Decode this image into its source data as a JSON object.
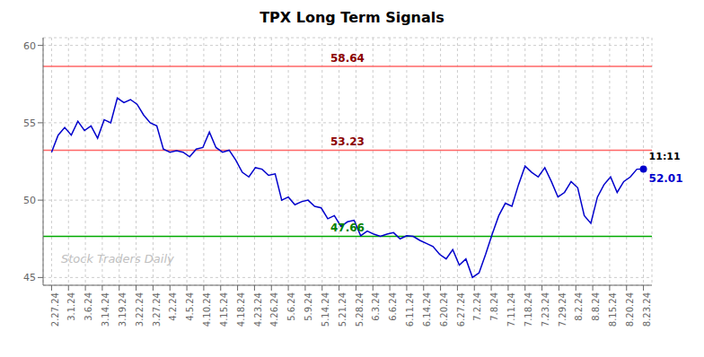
{
  "chart_data": {
    "type": "line",
    "title": "TPX Long Term Signals",
    "x": [
      0,
      0.388889,
      0.777778,
      1.166667,
      1.555556,
      1.944444,
      2.333333,
      2.722222,
      3.111111,
      3.5,
      3.888889,
      4.277778,
      4.666667,
      5.055556,
      5.444444,
      5.833333,
      6.222222,
      6.611111,
      7,
      7.388889,
      7.777778,
      8.166667,
      8.555556,
      8.944444,
      9.333333,
      9.722222,
      10.111111,
      10.5,
      10.888889,
      11.277778,
      11.666667,
      12.055556,
      12.444444,
      12.833333,
      13.222222,
      13.611111,
      14,
      14.388889,
      14.777778,
      15.166667,
      15.555556,
      15.944444,
      16.333333,
      16.722222,
      17.111111,
      17.5,
      17.888889,
      18.277778,
      18.666667,
      19.055556,
      19.444444,
      19.833333,
      20.222222,
      20.611111,
      21,
      21.388889,
      21.777778,
      22.166667,
      22.555556,
      22.944444,
      23.333333,
      23.722222,
      24.111111,
      24.5,
      24.888889,
      25.277778,
      25.666667,
      26.055556,
      26.444444,
      26.833333,
      27.222222,
      27.611111,
      28,
      28.388889,
      28.777778,
      29.166667,
      29.555556,
      29.944444,
      30.333333,
      30.722222,
      31.111111,
      31.5,
      31.888889,
      32.277778,
      32.666667,
      33.055556,
      33.444444,
      33.833333,
      34.222222,
      34.611111,
      35
    ],
    "values": [
      53.1,
      54.2,
      54.7,
      54.2,
      55.1,
      54.5,
      54.8,
      54.0,
      55.2,
      55.0,
      56.6,
      56.3,
      56.5,
      56.2,
      55.5,
      55.0,
      54.8,
      53.3,
      53.1,
      53.2,
      53.1,
      52.8,
      53.3,
      53.4,
      54.4,
      53.4,
      53.1,
      53.23,
      52.6,
      51.8,
      51.5,
      52.1,
      52.0,
      51.6,
      51.7,
      50.0,
      50.2,
      49.7,
      49.9,
      50.0,
      49.6,
      49.5,
      48.8,
      49.0,
      48.3,
      48.6,
      48.7,
      47.7,
      48.0,
      47.8,
      47.66,
      47.8,
      47.9,
      47.5,
      47.7,
      47.66,
      47.4,
      47.2,
      47.0,
      46.5,
      46.2,
      46.8,
      45.8,
      46.2,
      45.0,
      45.3,
      46.5,
      47.8,
      49.0,
      49.8,
      49.6,
      51.0,
      52.2,
      51.8,
      51.5,
      52.1,
      51.2,
      50.2,
      50.5,
      51.2,
      50.8,
      49.0,
      48.5,
      50.2,
      51.0,
      51.5,
      50.5,
      51.2,
      51.5,
      52.0,
      52.01
    ],
    "color": "#0000cc",
    "xlim": [
      -0.5,
      35.5
    ],
    "xticks": [
      {
        "value": 0,
        "label": "2.27.24"
      },
      {
        "value": 1,
        "label": "3.1.24"
      },
      {
        "value": 2,
        "label": "3.6.24"
      },
      {
        "value": 3,
        "label": "3.14.24"
      },
      {
        "value": 4,
        "label": "3.19.24"
      },
      {
        "value": 5,
        "label": "3.22.24"
      },
      {
        "value": 6,
        "label": "3.27.24"
      },
      {
        "value": 7,
        "label": "4.2.24"
      },
      {
        "value": 8,
        "label": "4.5.24"
      },
      {
        "value": 9,
        "label": "4.10.24"
      },
      {
        "value": 10,
        "label": "4.15.24"
      },
      {
        "value": 11,
        "label": "4.18.24"
      },
      {
        "value": 12,
        "label": "4.23.24"
      },
      {
        "value": 13,
        "label": "4.26.24"
      },
      {
        "value": 14,
        "label": "5.6.24"
      },
      {
        "value": 15,
        "label": "5.9.24"
      },
      {
        "value": 16,
        "label": "5.14.24"
      },
      {
        "value": 17,
        "label": "5.21.24"
      },
      {
        "value": 18,
        "label": "5.28.24"
      },
      {
        "value": 19,
        "label": "6.3.24"
      },
      {
        "value": 20,
        "label": "6.6.24"
      },
      {
        "value": 21,
        "label": "6.11.24"
      },
      {
        "value": 22,
        "label": "6.14.24"
      },
      {
        "value": 23,
        "label": "6.20.24"
      },
      {
        "value": 24,
        "label": "6.27.24"
      },
      {
        "value": 25,
        "label": "7.2.24"
      },
      {
        "value": 26,
        "label": "7.8.24"
      },
      {
        "value": 27,
        "label": "7.11.24"
      },
      {
        "value": 28,
        "label": "7.18.24"
      },
      {
        "value": 29,
        "label": "7.23.24"
      },
      {
        "value": 30,
        "label": "7.29.24"
      },
      {
        "value": 31,
        "label": "8.2.24"
      },
      {
        "value": 32,
        "label": "8.8.24"
      },
      {
        "value": 33,
        "label": "8.15.24"
      },
      {
        "value": 34,
        "label": "8.20.24"
      },
      {
        "value": 35,
        "label": "8.23.24"
      }
    ],
    "ylim": [
      44.5,
      60.5
    ],
    "yticks": [
      45,
      50,
      55,
      60
    ],
    "grid": true,
    "reference_lines": [
      {
        "value": 58.64,
        "label": "58.64",
        "color": "#ff6666",
        "label_color": "darkred"
      },
      {
        "value": 53.23,
        "label": "53.23",
        "color": "#ff6666",
        "label_color": "darkred"
      },
      {
        "value": 47.66,
        "label": "47.66",
        "color": "#00aa00",
        "label_color": "green"
      }
    ],
    "last_point_labels": [
      "11:11",
      "52.01"
    ],
    "watermark": "Stock Traders Daily",
    "watermark_color": "#c0c0c0"
  }
}
